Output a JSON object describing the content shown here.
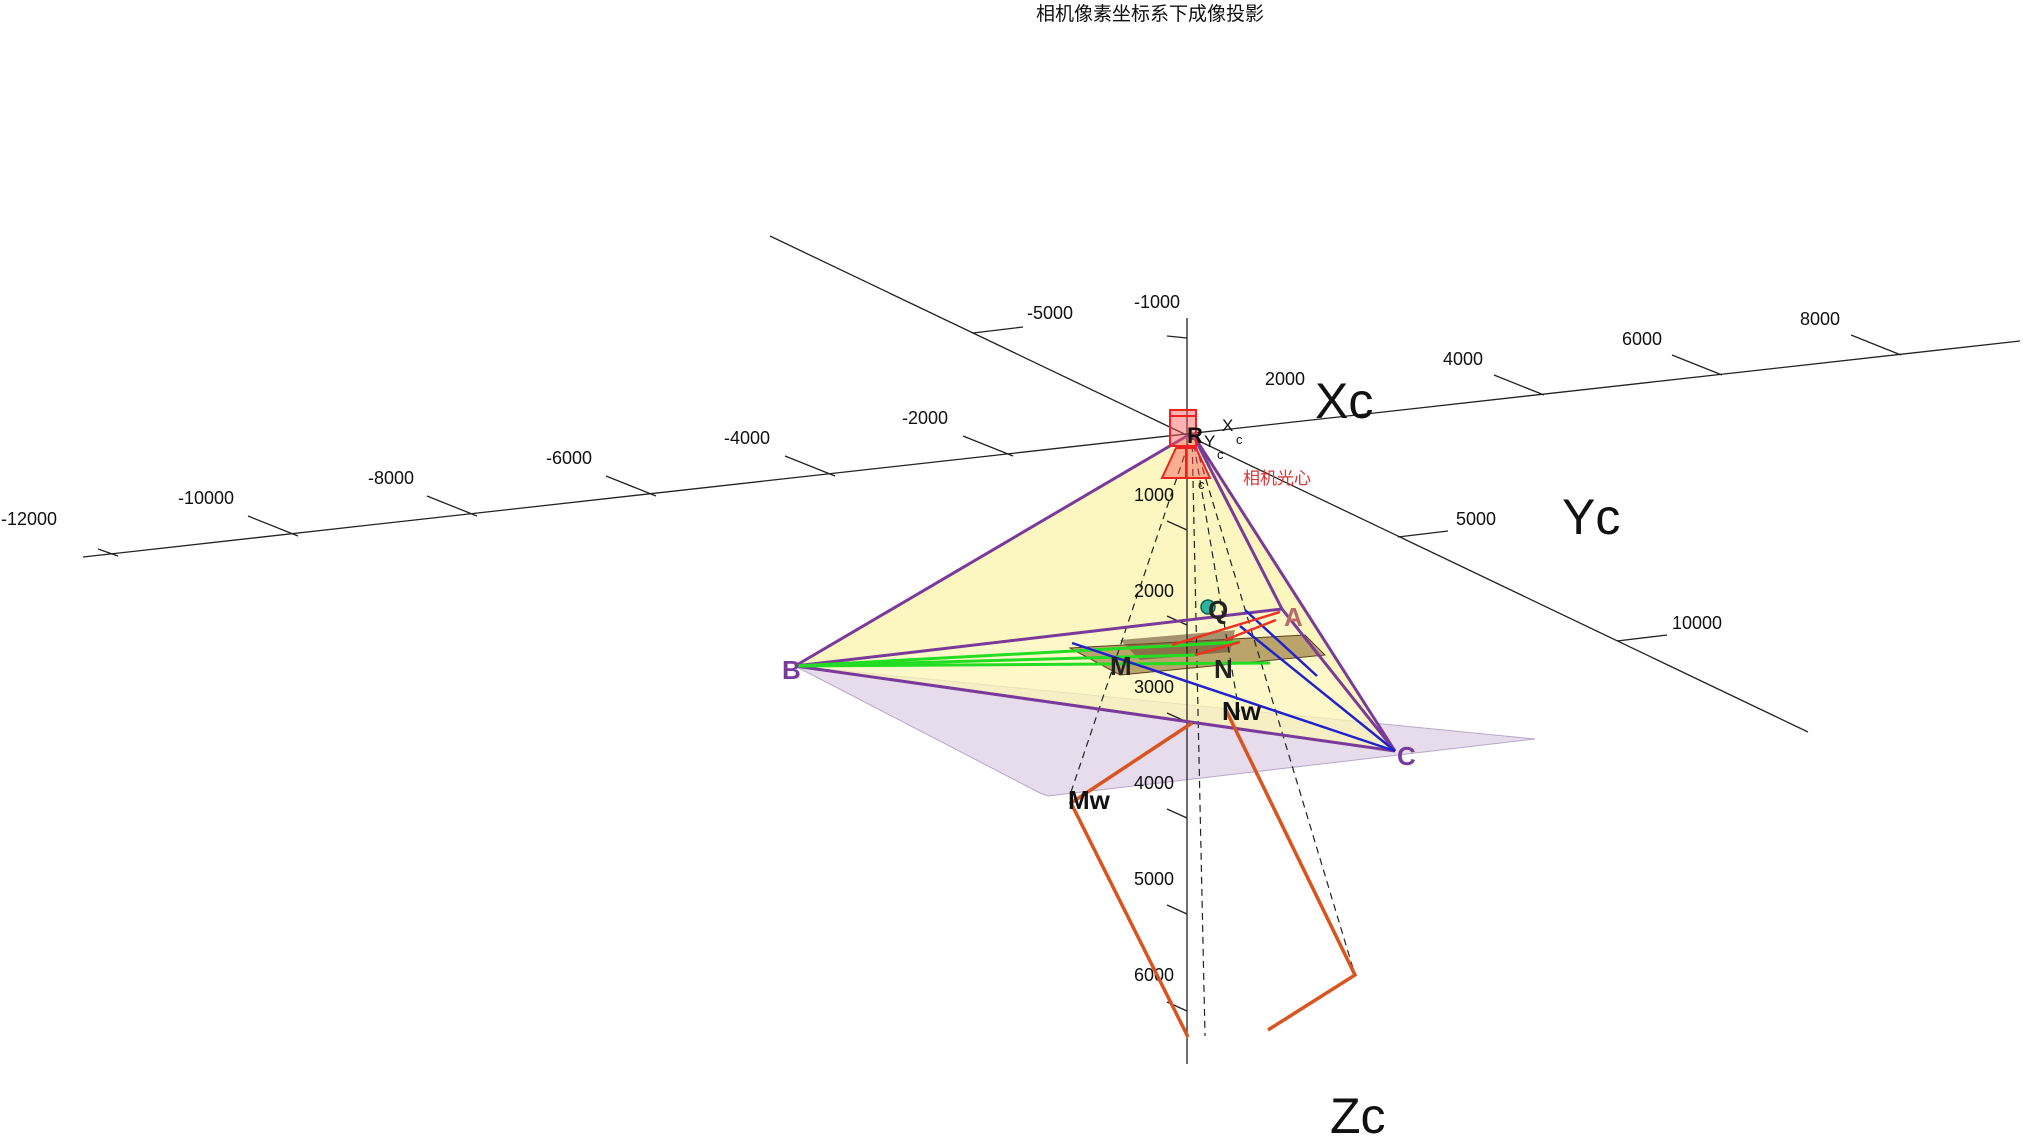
{
  "title": "相机像素坐标系下成像投影",
  "axes": {
    "xc_label": "Xc",
    "yc_label": "Yc",
    "zc_label": "Zc"
  },
  "ticks": {
    "xc": [
      "-12000",
      "-10000",
      "-8000",
      "-6000",
      "-4000",
      "-2000",
      "2000",
      "4000",
      "6000",
      "8000"
    ],
    "yc": [
      "-5000",
      "5000",
      "10000"
    ],
    "zc": [
      "-1000",
      "1000",
      "2000",
      "3000",
      "4000",
      "5000",
      "6000"
    ]
  },
  "camera": {
    "label_r": "R",
    "label_xc": "X",
    "label_xc_sub": "c",
    "label_yc": "Y",
    "label_yc_sub": "c",
    "label_zc_sub": "c",
    "optical_center_label": "相机光心"
  },
  "points": {
    "A": "A",
    "B": "B",
    "C": "C",
    "Q": "Q",
    "M": "M",
    "N": "N",
    "Mw": "Mw",
    "Nw": "Nw"
  },
  "colors": {
    "axis": "#222222",
    "pyramid_edge": "#7a3a9a",
    "pyramid_fill": "#fbf6b5",
    "plane_fill": "#e6dcec",
    "green_line": "#22dd22",
    "blue_line": "#2222cc",
    "red_line": "#ee3322",
    "orange_line": "#d9541e",
    "camera_red": "#ee2222",
    "label_purple": "#7a3a9a",
    "q_marker": "#2ab5a0",
    "optical_center_text": "#dd3333"
  }
}
